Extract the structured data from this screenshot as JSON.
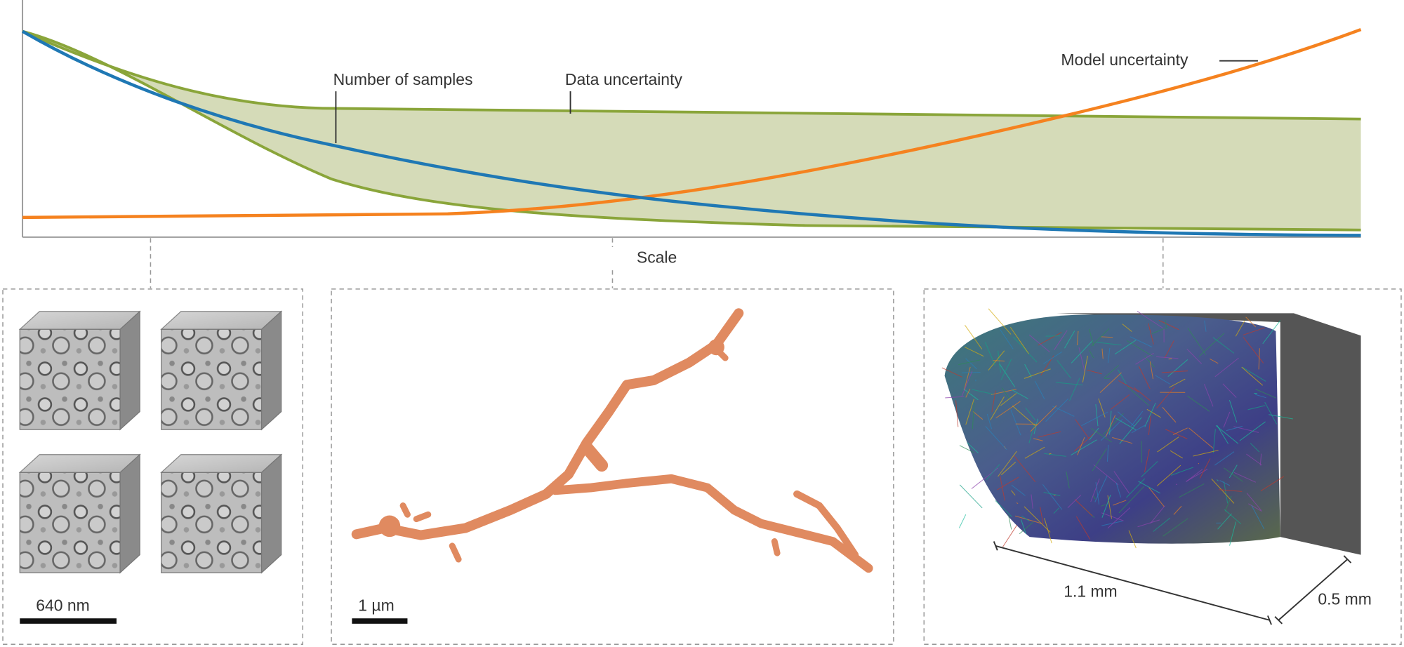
{
  "labels": {
    "samples": "Number of samples",
    "data": "Data uncertainty",
    "model": "Model uncertainty",
    "axis": "Scale"
  },
  "panels": [
    {
      "scale_bar": "640 nm"
    },
    {
      "scale_bar": "1 µm"
    },
    {
      "width": "1.1 mm",
      "depth": "0.5 mm"
    }
  ]
}
